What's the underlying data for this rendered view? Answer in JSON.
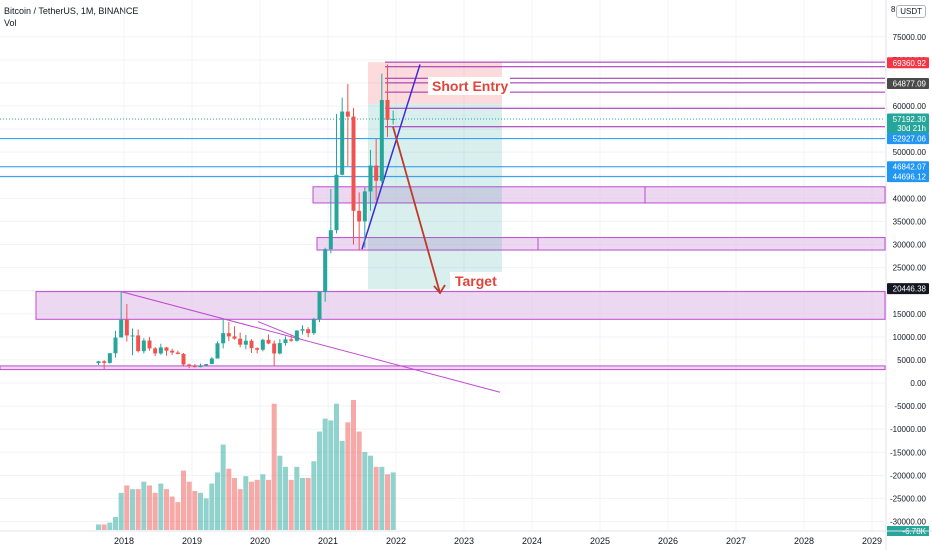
{
  "header": {
    "title": "Bitcoin / TetherUS, 1M, BINANCE",
    "sub": "Vol",
    "currency": "USDT"
  },
  "chart_data": {
    "type": "candlestick",
    "title": "Bitcoin / TetherUS, 1M, BINANCE",
    "price_axis": {
      "ticks": [
        75000,
        70000,
        65000,
        60000,
        55000,
        50000,
        45000,
        40000,
        35000,
        30000,
        25000,
        20000,
        15000,
        10000,
        5000,
        0,
        -5000,
        -10000,
        -15000,
        -20000,
        -25000,
        -30000
      ],
      "tick_labels": [
        "75000.00",
        "70000.00",
        "65000.00",
        "60000.00",
        "55000.00",
        "50000.00",
        "45000.00",
        "40000.00",
        "35000.00",
        "30000.00",
        "25000.00",
        "20000.00",
        "15000.00",
        "10000.00",
        "5000.00",
        "0.00",
        "-5000.00",
        "-10000.00",
        "-15000.00",
        "-20000.00",
        "-25000.00",
        "-30000.00"
      ],
      "top_partial_label": "8",
      "bottom_partial_label": "-6.78K"
    },
    "x_axis": {
      "ticks": [
        2018,
        2019,
        2020,
        2021,
        2022,
        2023,
        2024,
        2025,
        2026,
        2027,
        2028,
        2029
      ],
      "tick_labels": [
        "2018",
        "2019",
        "2020",
        "2021",
        "2022",
        "2023",
        "2024",
        "2025",
        "2026",
        "2027",
        "2028",
        "2029"
      ]
    },
    "price_tags": [
      {
        "value": 69360.92,
        "label": "69360.92",
        "color": "#f23645"
      },
      {
        "value": 64877.09,
        "label": "64877.09",
        "color": "#4a4a4a"
      },
      {
        "value": 57192.3,
        "label": "57192.30",
        "sub": "30d 21h",
        "color": "#26a69a"
      },
      {
        "value": 52927.06,
        "label": "52927.06",
        "color": "#2196f3"
      },
      {
        "value": 46842.07,
        "label": "46842.07",
        "color": "#2196f3"
      },
      {
        "value": 44696.12,
        "label": "44696.12",
        "color": "#2196f3"
      },
      {
        "value": 20446.38,
        "label": "20446.38",
        "color": "#131722"
      }
    ],
    "candles": [
      {
        "t": "2017-08",
        "o": 4300,
        "h": 4800,
        "l": 3900,
        "c": 4700
      },
      {
        "t": "2017-09",
        "o": 4700,
        "h": 4950,
        "l": 3000,
        "c": 4350
      },
      {
        "t": "2017-10",
        "o": 4350,
        "h": 6450,
        "l": 4200,
        "c": 6450
      },
      {
        "t": "2017-11",
        "o": 6450,
        "h": 11300,
        "l": 5500,
        "c": 9850
      },
      {
        "t": "2017-12",
        "o": 9850,
        "h": 19800,
        "l": 10500,
        "c": 13700
      },
      {
        "t": "2018-01",
        "o": 13700,
        "h": 17100,
        "l": 9000,
        "c": 10300
      },
      {
        "t": "2018-02",
        "o": 10300,
        "h": 11800,
        "l": 6000,
        "c": 10300
      },
      {
        "t": "2018-03",
        "o": 10300,
        "h": 11600,
        "l": 6600,
        "c": 6900
      },
      {
        "t": "2018-04",
        "o": 6900,
        "h": 9700,
        "l": 6400,
        "c": 9200
      },
      {
        "t": "2018-05",
        "o": 9200,
        "h": 10000,
        "l": 7000,
        "c": 7500
      },
      {
        "t": "2018-06",
        "o": 7500,
        "h": 7800,
        "l": 5800,
        "c": 6400
      },
      {
        "t": "2018-07",
        "o": 6400,
        "h": 8500,
        "l": 6100,
        "c": 7700
      },
      {
        "t": "2018-08",
        "o": 7700,
        "h": 7800,
        "l": 5900,
        "c": 7000
      },
      {
        "t": "2018-09",
        "o": 7000,
        "h": 7400,
        "l": 6100,
        "c": 6600
      },
      {
        "t": "2018-10",
        "o": 6600,
        "h": 7000,
        "l": 6200,
        "c": 6300
      },
      {
        "t": "2018-11",
        "o": 6300,
        "h": 6500,
        "l": 3600,
        "c": 4000
      },
      {
        "t": "2018-12",
        "o": 4000,
        "h": 4200,
        "l": 3200,
        "c": 3700
      },
      {
        "t": "2019-01",
        "o": 3700,
        "h": 4100,
        "l": 3350,
        "c": 3450
      },
      {
        "t": "2019-02",
        "o": 3450,
        "h": 4200,
        "l": 3400,
        "c": 3800
      },
      {
        "t": "2019-03",
        "o": 3800,
        "h": 4100,
        "l": 3700,
        "c": 4100
      },
      {
        "t": "2019-04",
        "o": 4100,
        "h": 5600,
        "l": 4100,
        "c": 5300
      },
      {
        "t": "2019-05",
        "o": 5300,
        "h": 9000,
        "l": 5300,
        "c": 8600
      },
      {
        "t": "2019-06",
        "o": 8600,
        "h": 13900,
        "l": 7500,
        "c": 10800
      },
      {
        "t": "2019-07",
        "o": 10800,
        "h": 13200,
        "l": 9100,
        "c": 10100
      },
      {
        "t": "2019-08",
        "o": 10100,
        "h": 12300,
        "l": 9400,
        "c": 9600
      },
      {
        "t": "2019-09",
        "o": 9600,
        "h": 10900,
        "l": 7700,
        "c": 8300
      },
      {
        "t": "2019-10",
        "o": 8300,
        "h": 10400,
        "l": 7300,
        "c": 9150
      },
      {
        "t": "2019-11",
        "o": 9150,
        "h": 9500,
        "l": 6500,
        "c": 7550
      },
      {
        "t": "2019-12",
        "o": 7550,
        "h": 7750,
        "l": 6400,
        "c": 7200
      },
      {
        "t": "2020-01",
        "o": 7200,
        "h": 9600,
        "l": 6850,
        "c": 9350
      },
      {
        "t": "2020-02",
        "o": 9350,
        "h": 10500,
        "l": 8400,
        "c": 8550
      },
      {
        "t": "2020-03",
        "o": 8550,
        "h": 9200,
        "l": 3800,
        "c": 6400
      },
      {
        "t": "2020-04",
        "o": 6400,
        "h": 9500,
        "l": 6150,
        "c": 8650
      },
      {
        "t": "2020-05",
        "o": 8650,
        "h": 10100,
        "l": 8100,
        "c": 9450
      },
      {
        "t": "2020-06",
        "o": 9450,
        "h": 10400,
        "l": 8900,
        "c": 9150
      },
      {
        "t": "2020-07",
        "o": 9150,
        "h": 11450,
        "l": 9000,
        "c": 11350
      },
      {
        "t": "2020-08",
        "o": 11350,
        "h": 12500,
        "l": 10500,
        "c": 11650
      },
      {
        "t": "2020-09",
        "o": 11650,
        "h": 12100,
        "l": 9900,
        "c": 10800
      },
      {
        "t": "2020-10",
        "o": 10800,
        "h": 14100,
        "l": 10400,
        "c": 13800
      },
      {
        "t": "2020-11",
        "o": 13800,
        "h": 19900,
        "l": 13200,
        "c": 19700
      },
      {
        "t": "2020-12",
        "o": 19700,
        "h": 29300,
        "l": 17600,
        "c": 29000
      },
      {
        "t": "2021-01",
        "o": 29000,
        "h": 42000,
        "l": 28100,
        "c": 33100
      },
      {
        "t": "2021-02",
        "o": 33100,
        "h": 58300,
        "l": 32400,
        "c": 45100
      },
      {
        "t": "2021-03",
        "o": 45100,
        "h": 61800,
        "l": 45000,
        "c": 58800
      },
      {
        "t": "2021-04",
        "o": 58800,
        "h": 64800,
        "l": 47000,
        "c": 57700
      },
      {
        "t": "2021-05",
        "o": 57700,
        "h": 59600,
        "l": 30000,
        "c": 37300
      },
      {
        "t": "2021-06",
        "o": 37300,
        "h": 41300,
        "l": 28800,
        "c": 35000
      },
      {
        "t": "2021-07",
        "o": 35000,
        "h": 42400,
        "l": 29300,
        "c": 41500
      },
      {
        "t": "2021-08",
        "o": 41500,
        "h": 50500,
        "l": 37300,
        "c": 47100
      },
      {
        "t": "2021-09",
        "o": 47100,
        "h": 52900,
        "l": 39600,
        "c": 43800
      },
      {
        "t": "2021-10",
        "o": 43800,
        "h": 67000,
        "l": 43300,
        "c": 61300
      },
      {
        "t": "2021-11",
        "o": 61300,
        "h": 69000,
        "l": 53300,
        "c": 57000
      },
      {
        "t": "2021-12",
        "o": 57000,
        "h": 59000,
        "l": 56000,
        "c": 57192
      }
    ],
    "volume_values": [
      3,
      3,
      4,
      7,
      20,
      24,
      22,
      22,
      26,
      24,
      20,
      25,
      22,
      18,
      15,
      32,
      26,
      21,
      20,
      17,
      25,
      31,
      46,
      33,
      28,
      22,
      29,
      26,
      27,
      30,
      27,
      68,
      40,
      34,
      27,
      34,
      28,
      28,
      37,
      53,
      60,
      59,
      68,
      48,
      58,
      70,
      53,
      42,
      40,
      34,
      34,
      30,
      31
    ],
    "annotations": [
      {
        "label": "Short Entry"
      },
      {
        "label": "Target"
      }
    ]
  }
}
